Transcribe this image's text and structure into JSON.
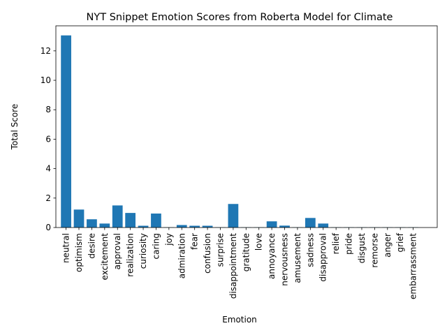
{
  "chart_data": {
    "type": "bar",
    "title": "NYT Snippet Emotion Scores from Roberta Model for Climate",
    "xlabel": "Emotion",
    "ylabel": "Total Score",
    "ylim": [
      0,
      13.7
    ],
    "yticks": [
      0,
      2,
      4,
      6,
      8,
      10,
      12
    ],
    "bar_color": "#1f77b4",
    "categories": [
      "neutral",
      "optimism",
      "desire",
      "excitement",
      "approval",
      "realization",
      "curiosity",
      "caring",
      "joy",
      "admiration",
      "fear",
      "confusion",
      "surprise",
      "disappointment",
      "gratitude",
      "love",
      "annoyance",
      "nervousness",
      "amusement",
      "sadness",
      "disapproval",
      "relief",
      "pride",
      "disgust",
      "remorse",
      "anger",
      "grief",
      "embarrassment"
    ],
    "values": [
      13.05,
      1.22,
      0.56,
      0.27,
      1.5,
      0.99,
      0.12,
      0.95,
      0.02,
      0.17,
      0.12,
      0.12,
      0.02,
      1.6,
      0.02,
      0.02,
      0.42,
      0.13,
      0.02,
      0.65,
      0.27,
      0.02,
      0.02,
      0.02,
      0.02,
      0.02,
      0.02,
      0.02
    ]
  }
}
